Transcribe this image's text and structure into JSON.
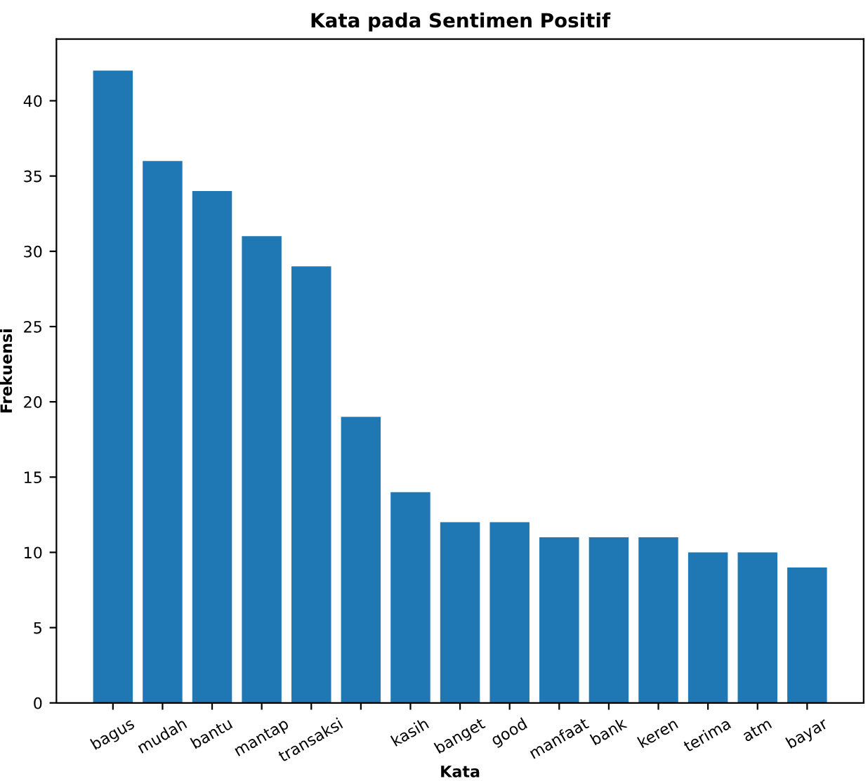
{
  "chart_data": {
    "type": "bar",
    "title": "Kata pada Sentimen Positif",
    "xlabel": "Kata",
    "ylabel": "Frekuensi",
    "categories": [
      "bagus",
      "mudah",
      "bantu",
      "mantap",
      "transaksi",
      null,
      "kasih",
      "banget",
      "good",
      "manfaat",
      "bank",
      "keren",
      "terima",
      "atm",
      "bayar"
    ],
    "values": [
      42,
      36,
      34,
      31,
      29,
      19,
      14,
      12,
      12,
      11,
      11,
      11,
      10,
      10,
      9
    ],
    "color": "#1f77b4",
    "ylim": [
      0,
      44.1
    ],
    "yticks": [
      0,
      5,
      10,
      15,
      20,
      25,
      30,
      35,
      40
    ],
    "grid": false
  }
}
